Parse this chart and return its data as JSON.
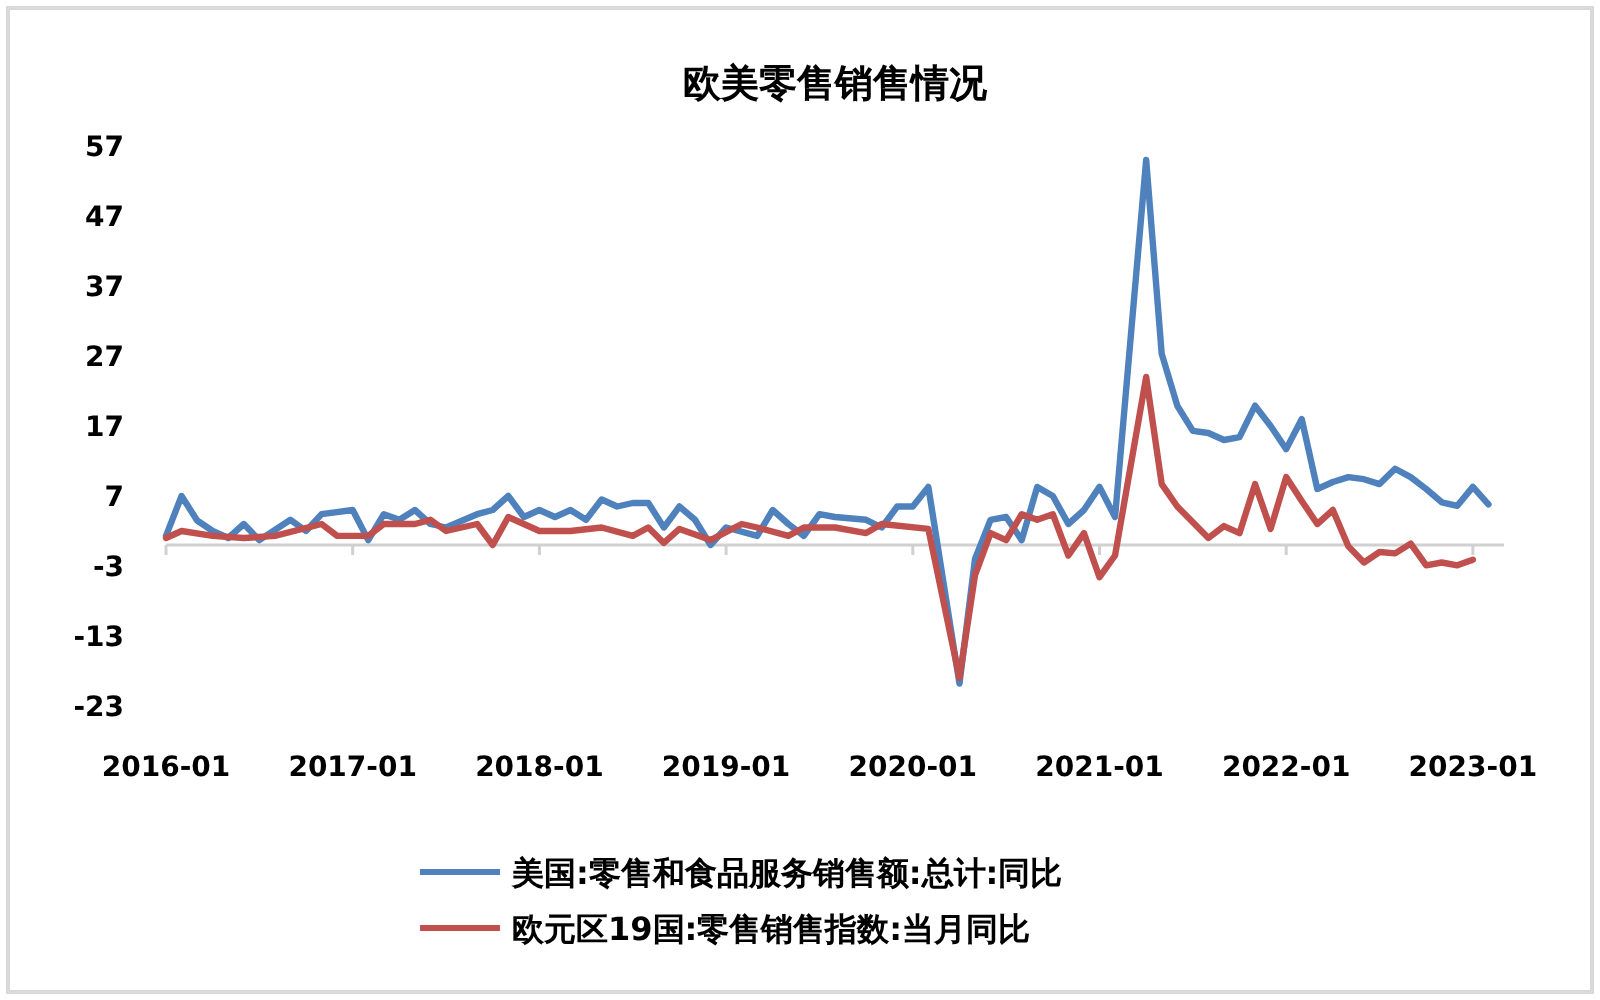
{
  "chart_data": {
    "type": "line",
    "title": "欧美零售销售情况",
    "xlim": [
      "2016-01",
      "2023-03"
    ],
    "xticks": [
      "2016-01",
      "2017-01",
      "2018-01",
      "2019-01",
      "2020-01",
      "2021-01",
      "2022-01",
      "2023-01"
    ],
    "ylim": [
      -23,
      57
    ],
    "yticks": [
      -23,
      -13,
      -3,
      7,
      17,
      27,
      37,
      47,
      57
    ],
    "legend": "bottom",
    "series": [
      {
        "name": "美国:零售和食品服务销售额:总计:同比",
        "color": "#4f81bd",
        "x": [
          "2016-01",
          "2016-02",
          "2016-03",
          "2016-04",
          "2016-05",
          "2016-06",
          "2016-07",
          "2016-09",
          "2016-10",
          "2016-11",
          "2017-01",
          "2017-02",
          "2017-03",
          "2017-04",
          "2017-05",
          "2017-06",
          "2017-07",
          "2017-09",
          "2017-10",
          "2017-11",
          "2017-12",
          "2018-01",
          "2018-02",
          "2018-03",
          "2018-04",
          "2018-05",
          "2018-06",
          "2018-07",
          "2018-08",
          "2018-09",
          "2018-10",
          "2018-11",
          "2018-12",
          "2019-01",
          "2019-03",
          "2019-04",
          "2019-05",
          "2019-06",
          "2019-07",
          "2019-08",
          "2019-10",
          "2019-11",
          "2019-12",
          "2020-01",
          "2020-02",
          "2020-04",
          "2020-05",
          "2020-06",
          "2020-07",
          "2020-08",
          "2020-09",
          "2020-10",
          "2020-11",
          "2020-12",
          "2021-01",
          "2021-02",
          "2021-04",
          "2021-05",
          "2021-06",
          "2021-07",
          "2021-08",
          "2021-09",
          "2021-10",
          "2021-11",
          "2021-12",
          "2022-01",
          "2022-02",
          "2022-03",
          "2022-04",
          "2022-05",
          "2022-06",
          "2022-07",
          "2022-08",
          "2022-09",
          "2022-10",
          "2022-11",
          "2022-12",
          "2023-01",
          "2023-02"
        ],
        "values": [
          1.3,
          7,
          3.5,
          2,
          1,
          3,
          0.7,
          3.6,
          2,
          4.4,
          5,
          0.7,
          4.4,
          3.6,
          5,
          3,
          2.5,
          4.4,
          5,
          7,
          4,
          5,
          4,
          5,
          3.6,
          6.5,
          5.5,
          6,
          6,
          2.5,
          5.5,
          3.6,
          0,
          2.5,
          1.3,
          5,
          3,
          1.3,
          4.4,
          4,
          3.6,
          2.5,
          5.5,
          5.5,
          8.3,
          -19.8,
          -2,
          3.6,
          4,
          0.7,
          8.3,
          7,
          3,
          5,
          8.3,
          4,
          55,
          27.3,
          19.9,
          16.3,
          16,
          15,
          15.4,
          19.9,
          17,
          13.7,
          18,
          8,
          9,
          9.7,
          9.4,
          8.7,
          10.9,
          9.7,
          8,
          6.1,
          5.6,
          8.3,
          5.8
        ]
      },
      {
        "name": "欧元区19国:零售销售指数:当月同比",
        "color": "#c0504d",
        "x": [
          "2016-01",
          "2016-02",
          "2016-04",
          "2016-06",
          "2016-08",
          "2016-11",
          "2016-12",
          "2017-02",
          "2017-03",
          "2017-05",
          "2017-06",
          "2017-07",
          "2017-09",
          "2017-10",
          "2017-11",
          "2018-01",
          "2018-03",
          "2018-05",
          "2018-07",
          "2018-08",
          "2018-09",
          "2018-10",
          "2018-12",
          "2019-02",
          "2019-03",
          "2019-05",
          "2019-06",
          "2019-08",
          "2019-10",
          "2019-11",
          "2020-02",
          "2020-04",
          "2020-05",
          "2020-06",
          "2020-07",
          "2020-08",
          "2020-09",
          "2020-10",
          "2020-11",
          "2020-12",
          "2021-01",
          "2021-02",
          "2021-04",
          "2021-05",
          "2021-06",
          "2021-08",
          "2021-09",
          "2021-10",
          "2021-11",
          "2021-12",
          "2022-01",
          "2022-02",
          "2022-03",
          "2022-04",
          "2022-05",
          "2022-06",
          "2022-07",
          "2022-08",
          "2022-09",
          "2022-10",
          "2022-11",
          "2022-12",
          "2023-01"
        ],
        "values": [
          1,
          2,
          1.3,
          1,
          1.3,
          3,
          1.3,
          1.3,
          3,
          3,
          3.6,
          2,
          3,
          0,
          4,
          2,
          2,
          2.5,
          1.3,
          2.5,
          0.3,
          2.3,
          0.7,
          3,
          2.5,
          1.3,
          2.5,
          2.5,
          1.7,
          3,
          2.3,
          -19,
          -4.3,
          1.7,
          0.7,
          4.4,
          3.6,
          4.4,
          -1.5,
          1.7,
          -4.6,
          -1.5,
          24,
          8.7,
          5.5,
          1,
          2.7,
          1.7,
          8.7,
          2.3,
          9.7,
          6.3,
          3,
          5,
          -0.2,
          -2.5,
          -1,
          -1.2,
          0.2,
          -2.9,
          -2.5,
          -2.9,
          -2.1
        ]
      }
    ]
  }
}
